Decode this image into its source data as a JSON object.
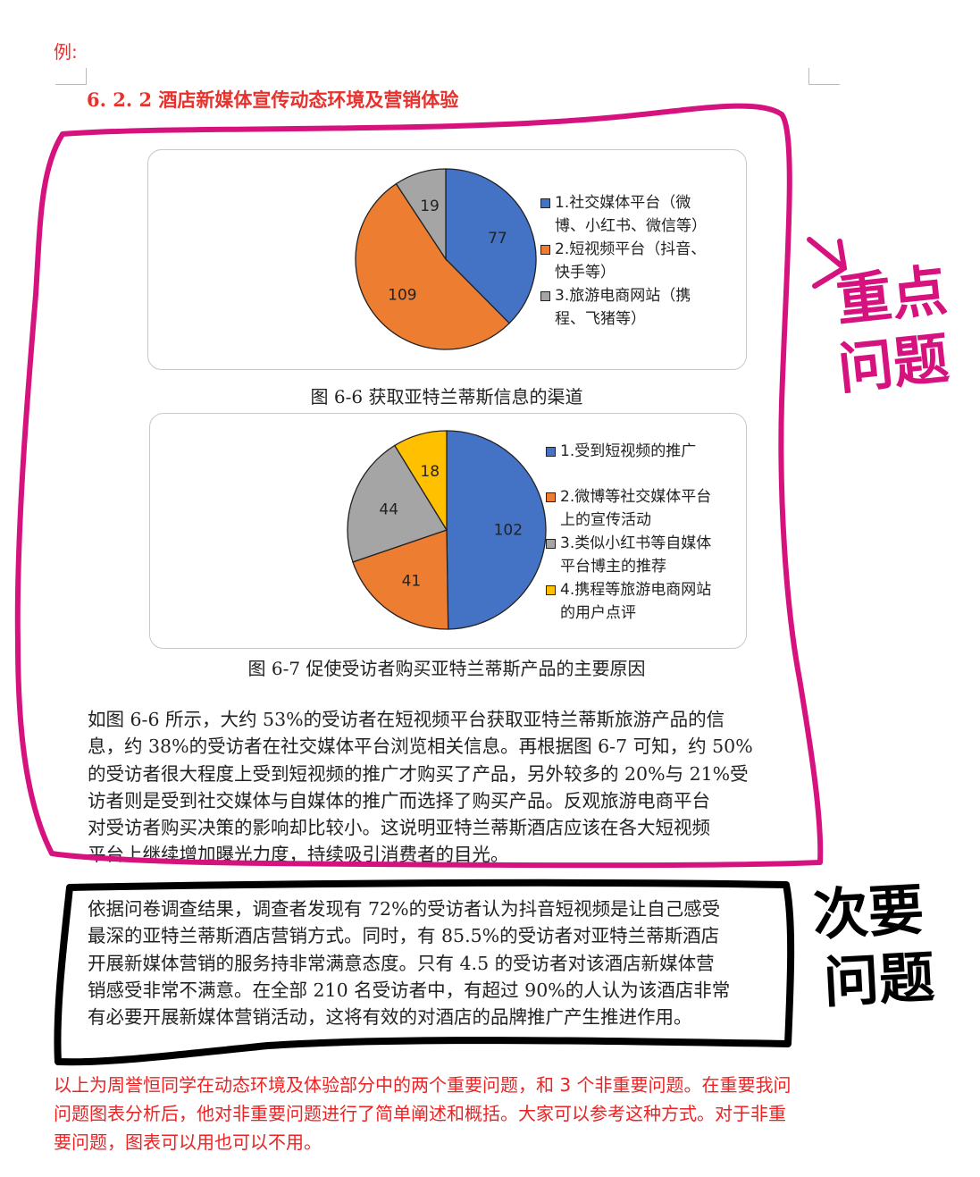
{
  "example_label": "例:",
  "heading": "6. 2. 2  酒店新媒体宣传动态环境及营销体验",
  "chart_data": [
    {
      "type": "pie",
      "title": "",
      "categories": [
        "1.社交媒体平台（微博、小红书、微信等）",
        "2.短视频平台（抖音、快手等）",
        "3.旅游电商网站（携程、飞猪等）"
      ],
      "legend_lines": [
        [
          "1.社交媒体平台（微",
          "博、小红书、微信等）"
        ],
        [
          "2.短视频平台（抖音、",
          "快手等）"
        ],
        [
          "3.旅游电商网站（携",
          "程、飞猪等）"
        ]
      ],
      "values": [
        77,
        109,
        19
      ],
      "colors": [
        "#4472c4",
        "#ed7d31",
        "#a5a5a5"
      ],
      "legend_position": "right",
      "caption": "图 6-6  获取亚特兰蒂斯信息的渠道"
    },
    {
      "type": "pie",
      "title": "",
      "categories": [
        "1.受到短视频的推广",
        "2.微博等社交媒体平台上的宣传活动",
        "3.类似小红书等自媒体平台博主的推荐",
        "4.携程等旅游电商网站的用户点评"
      ],
      "legend_lines": [
        [
          "1.受到短视频的推广"
        ],
        [
          "2.微博等社交媒体平台",
          "上的宣传活动"
        ],
        [
          "3.类似小红书等自媒体",
          "平台博主的推荐"
        ],
        [
          "4.携程等旅游电商网站",
          "的用户点评"
        ]
      ],
      "values": [
        102,
        41,
        44,
        18
      ],
      "colors": [
        "#4472c4",
        "#ed7d31",
        "#a5a5a5",
        "#ffc000"
      ],
      "legend_position": "right",
      "caption": "图 6-7  促使受访者购买亚特兰蒂斯产品的主要原因"
    }
  ],
  "paragraph1": [
    "如图 6-6 所示，大约 53%的受访者在短视频平台获取亚特兰蒂斯旅游产品的信",
    "息，约 38%的受访者在社交媒体平台浏览相关信息。再根据图 6-7 可知，约 50%",
    "的受访者很大程度上受到短视频的推广才购买了产品，另外较多的 20%与 21%受",
    "访者则是受到社交媒体与自媒体的推广而选择了购买产品。反观旅游电商平台",
    "对受访者购买决策的影响却比较小。这说明亚特兰蒂斯酒店应该在各大短视频",
    "平台上继续增加曝光力度，持续吸引消费者的目光。"
  ],
  "paragraph2": [
    "依据问卷调查结果，调查者发现有 72%的受访者认为抖音短视频是让自己感受",
    "最深的亚特兰蒂斯酒店营销方式。同时，有 85.5%的受访者对亚特兰蒂斯酒店",
    "开展新媒体营销的服务持非常满意态度。只有 4.5 的受访者对该酒店新媒体营",
    "销感受非常不满意。在全部 210 名受访者中，有超过 90%的人认为该酒店非常",
    "有必要开展新媒体营销活动，这将有效的对酒店的品牌推广产生推进作用。"
  ],
  "note": [
    "以上为周誉恒同学在动态环境及体验部分中的两个重要问题，和 3 个非重要问题。在重要我问",
    "问题图表分析后，他对非重要问题进行了简单阐述和概括。大家可以参考这种方式。对于非重",
    "要问题，图表可以用也可以不用。"
  ],
  "annotations": {
    "important": [
      "重点",
      "问题"
    ],
    "secondary": [
      "次要",
      "问题"
    ],
    "important_color": "#d6127f",
    "secondary_color": "#000000"
  }
}
